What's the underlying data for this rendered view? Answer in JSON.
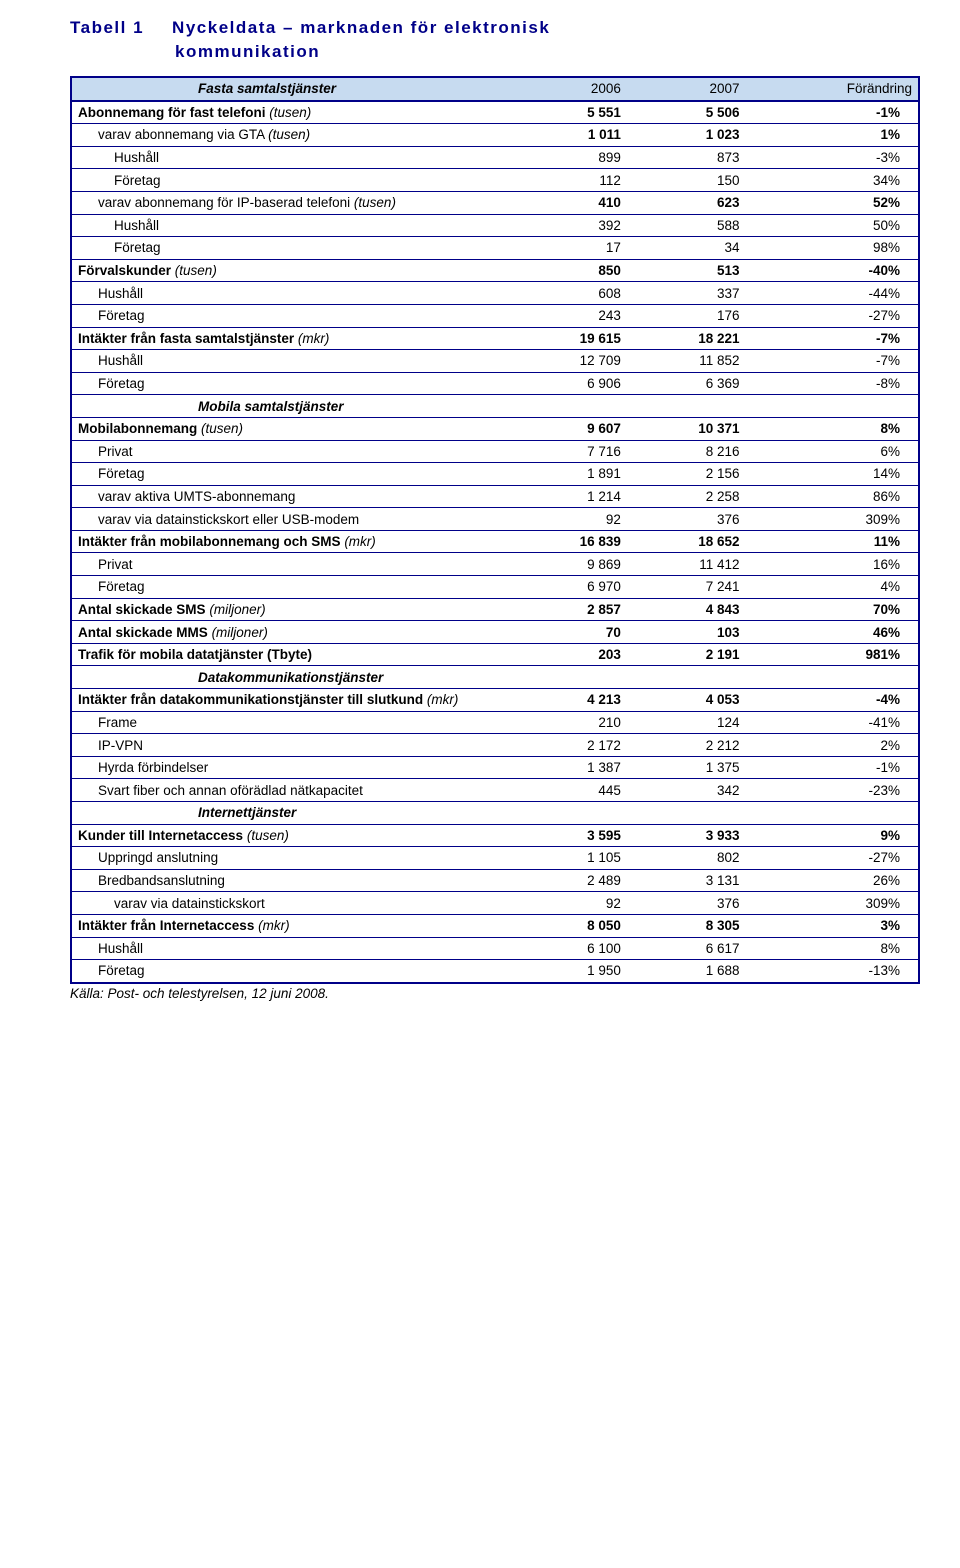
{
  "title": {
    "number": "Tabell 1",
    "line1": "Nyckeldata – marknaden för elektronisk",
    "line2": "kommunikation"
  },
  "headers": {
    "c1": "2006",
    "c2": "2007",
    "c3": "Förändring"
  },
  "sections": {
    "fasta": "Fasta samtalstjänster",
    "mobila": "Mobila samtalstjänster",
    "datakom": "Datakommunikationstjänster",
    "internet": "Internettjänster"
  },
  "rows": {
    "r1": {
      "l": "Abonnemang för fast telefoni",
      "u": "(tusen)",
      "a": "5 551",
      "b": "5 506",
      "c": "-1%"
    },
    "r2": {
      "l": "varav abonnemang via GTA",
      "u": "(tusen)",
      "a": "1 011",
      "b": "1 023",
      "c": "1%"
    },
    "r3": {
      "l": "Hushåll",
      "a": "899",
      "b": "873",
      "c": "-3%"
    },
    "r4": {
      "l": "Företag",
      "a": "112",
      "b": "150",
      "c": "34%"
    },
    "r5": {
      "l": "varav abonnemang för IP-baserad telefoni",
      "u": "(tusen)",
      "a": "410",
      "b": "623",
      "c": "52%"
    },
    "r6": {
      "l": "Hushåll",
      "a": "392",
      "b": "588",
      "c": "50%"
    },
    "r7": {
      "l": "Företag",
      "a": "17",
      "b": "34",
      "c": "98%"
    },
    "r8": {
      "l": "Förvalskunder",
      "u": "(tusen)",
      "a": "850",
      "b": "513",
      "c": "-40%"
    },
    "r9": {
      "l": "Hushåll",
      "a": "608",
      "b": "337",
      "c": "-44%"
    },
    "r10": {
      "l": "Företag",
      "a": "243",
      "b": "176",
      "c": "-27%"
    },
    "r11": {
      "l": "Intäkter från fasta samtalstjänster",
      "u": "(mkr)",
      "a": "19 615",
      "b": "18 221",
      "c": "-7%"
    },
    "r12": {
      "l": "Hushåll",
      "a": "12 709",
      "b": "11 852",
      "c": "-7%"
    },
    "r13": {
      "l": "Företag",
      "a": "6 906",
      "b": "6 369",
      "c": "-8%"
    },
    "r14": {
      "l": "Mobilabonnemang",
      "u": "(tusen)",
      "a": "9 607",
      "b": "10 371",
      "c": "8%"
    },
    "r15": {
      "l": "Privat",
      "a": "7 716",
      "b": "8 216",
      "c": "6%"
    },
    "r16": {
      "l": "Företag",
      "a": "1 891",
      "b": "2 156",
      "c": "14%"
    },
    "r17": {
      "l": "varav aktiva UMTS-abonnemang",
      "a": "1 214",
      "b": "2 258",
      "c": "86%"
    },
    "r18": {
      "l": "varav via datainstickskort eller USB-modem",
      "a": "92",
      "b": "376",
      "c": "309%"
    },
    "r19": {
      "l": "Intäkter från mobilabonnemang och SMS",
      "u": "(mkr)",
      "a": "16 839",
      "b": "18 652",
      "c": "11%"
    },
    "r20": {
      "l": "Privat",
      "a": "9 869",
      "b": "11 412",
      "c": "16%"
    },
    "r21": {
      "l": "Företag",
      "a": "6 970",
      "b": "7 241",
      "c": "4%"
    },
    "r22": {
      "l": "Antal skickade SMS",
      "u": "(miljoner)",
      "a": "2 857",
      "b": "4 843",
      "c": "70%"
    },
    "r23": {
      "l": "Antal skickade MMS",
      "u": "(miljoner)",
      "a": "70",
      "b": "103",
      "c": "46%"
    },
    "r24": {
      "l": "Trafik för mobila datatjänster (Tbyte)",
      "a": "203",
      "b": "2 191",
      "c": "981%"
    },
    "r25": {
      "l": "Intäkter från datakommunikationstjänster till slutkund",
      "u": "(mkr)",
      "a": "4 213",
      "b": "4 053",
      "c": "-4%"
    },
    "r26": {
      "l": "Frame",
      "a": "210",
      "b": "124",
      "c": "-41%"
    },
    "r27": {
      "l": "IP-VPN",
      "a": "2 172",
      "b": "2 212",
      "c": "2%"
    },
    "r28": {
      "l": "Hyrda förbindelser",
      "a": "1 387",
      "b": "1 375",
      "c": "-1%"
    },
    "r29": {
      "l": "Svart fiber och annan oförädlad nätkapacitet",
      "a": "445",
      "b": "342",
      "c": "-23%"
    },
    "r30": {
      "l": "Kunder till Internetaccess",
      "u": "(tusen)",
      "a": "3 595",
      "b": "3 933",
      "c": "9%"
    },
    "r31": {
      "l": "Uppringd anslutning",
      "a": "1 105",
      "b": "802",
      "c": "-27%"
    },
    "r32": {
      "l": "Bredbandsanslutning",
      "a": "2 489",
      "b": "3 131",
      "c": "26%"
    },
    "r33": {
      "l": "varav via datainstickskort",
      "a": "92",
      "b": "376",
      "c": "309%"
    },
    "r34": {
      "l": "Intäkter från Internetaccess",
      "u": "(mkr)",
      "a": "8 050",
      "b": "8 305",
      "c": "3%"
    },
    "r35": {
      "l": "Hushåll",
      "a": "6 100",
      "b": "6 617",
      "c": "8%"
    },
    "r36": {
      "l": "Företag",
      "a": "1 950",
      "b": "1 688",
      "c": "-13%"
    }
  },
  "source": "Källa:  Post- och telestyrelsen, 12 juni 2008."
}
